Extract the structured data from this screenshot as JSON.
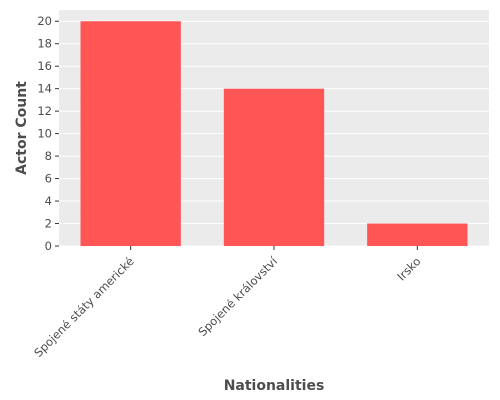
{
  "chart_data": {
    "type": "bar",
    "categories": [
      "Spojené státy americké",
      "Spojené království",
      "Irsko"
    ],
    "values": [
      20,
      14,
      2
    ],
    "title": "",
    "xlabel": "Nationalities",
    "ylabel": "Actor Count",
    "ylim": [
      0,
      21
    ],
    "yticks": [
      0,
      2,
      4,
      6,
      8,
      10,
      12,
      14,
      16,
      18,
      20
    ],
    "grid": true,
    "bar_color": "#ff5555",
    "panel_color": "#ebebeb",
    "grid_color": "#ffffff"
  }
}
